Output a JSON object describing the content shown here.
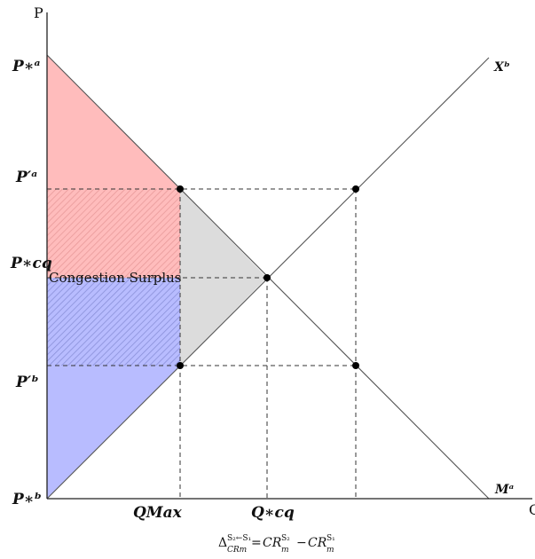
{
  "axes": {
    "y_label": "P",
    "x_label": "Q"
  },
  "price_labels": {
    "p_star_a": "P∗ᵃ",
    "p_prime_a": "P′ᵃ",
    "p_star_cq": "P∗cq",
    "p_prime_b": "P′ᵇ",
    "p_star_b": "P∗ᵇ"
  },
  "quantity_labels": {
    "q_max": "QMax",
    "q_star_cq": "Q∗cq"
  },
  "curve_labels": {
    "x_curve": "Xᵇ",
    "m_curve": "Mᵃ"
  },
  "annotation": {
    "congestion_surplus": "Congestion Surplus"
  },
  "formula": {
    "lhs": "Δ",
    "lhs_sup": "S₂←S₁",
    "lhs_sub": "CRm",
    "eq": "=",
    "term1": "CR",
    "term1_sub": "m",
    "term1_sup": "S₂",
    "minus": "−",
    "term2": "CR",
    "term2_sub": "m",
    "term2_sup": "S₁"
  },
  "colors": {
    "red_area": "#ffbcbc",
    "blue_area": "#b8bcff",
    "gray_area": "#dcdcdc",
    "hatch_red": "#e89a9a",
    "hatch_blue": "#8a90d8",
    "line": "#555555"
  }
}
